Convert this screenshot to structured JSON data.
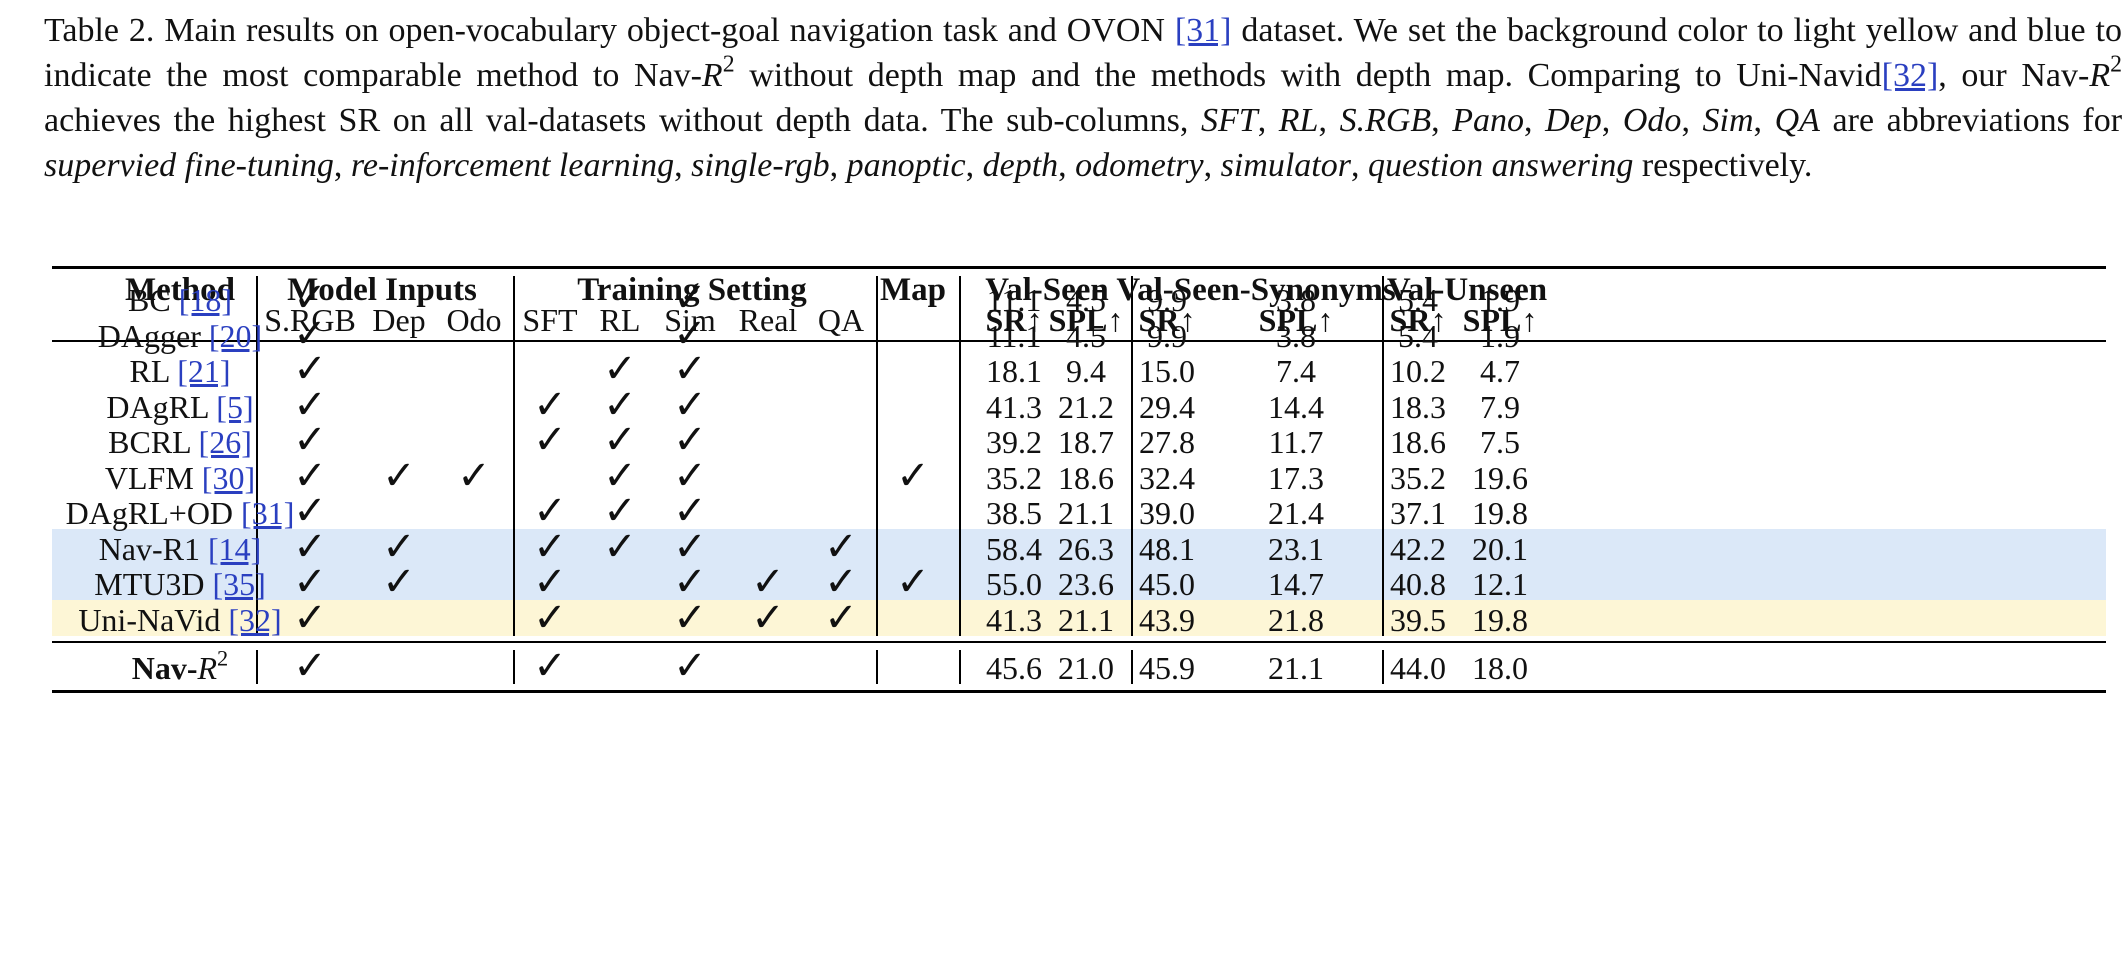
{
  "caption": {
    "label": "Table 2.",
    "s1a": "Main results on open-vocabulary object-goal navigation task and OVON",
    "s1ref": "[31]",
    "s1b": "dataset. We set the background color to light yellow and blue to indicate the most comparable method to Nav-",
    "s2a": "without depth map and the methods with depth map. Comparing to Uni-Navid",
    "s2ref": "[32]",
    "s2b": ", our Nav-",
    "s2c": "achieves the highest SR on all val-datasets without depth data. The sub-columns,",
    "abbr": [
      "SFT",
      "RL",
      "S.RGB",
      "Pano",
      "Dep",
      "Odo",
      "Sim",
      "QA"
    ],
    "mid": "are abbreviations for",
    "full": [
      "supervied fine-tuning",
      "re-inforcement learning",
      "single-rgb",
      "panoptic",
      "depth",
      "odometry",
      "simulator",
      "question answering"
    ],
    "end": "respectively.",
    "math_base": "R",
    "math_sup": "2"
  },
  "colors": {
    "blue_band": "#dbe8f8",
    "yellow_band": "#fdf6d6",
    "link": "#2a3fc0"
  },
  "table": {
    "group_headers": [
      "Method",
      "Model Inputs",
      "Training Setting",
      "Map",
      "Val-Seen",
      "Val-Seen-Synonyms",
      "Val-Unseen"
    ],
    "sub_headers": [
      "S.RGB",
      "Dep",
      "Odo",
      "SFT",
      "RL",
      "Sim",
      "Real",
      "QA"
    ],
    "metric_headers": [
      "SR↑",
      "SPL↑",
      "SR↑",
      "SPL↑",
      "SR↑",
      "SPL↑"
    ],
    "check_mark": "✓",
    "rows": [
      {
        "name": "BC",
        "ref": "[18]",
        "checks": [
          1,
          0,
          0,
          0,
          0,
          1,
          0,
          0,
          0
        ],
        "vals": [
          "11.1",
          "4.5",
          "9.9",
          "3.8",
          "5.4",
          "1.9"
        ],
        "band": ""
      },
      {
        "name": "DAgger",
        "ref": "[20]",
        "checks": [
          1,
          0,
          0,
          0,
          0,
          1,
          0,
          0,
          0
        ],
        "vals": [
          "11.1",
          "4.5",
          "9.9",
          "3.8",
          "5.4",
          "1.9"
        ],
        "band": ""
      },
      {
        "name": "RL",
        "ref": "[21]",
        "checks": [
          1,
          0,
          0,
          0,
          1,
          1,
          0,
          0,
          0
        ],
        "vals": [
          "18.1",
          "9.4",
          "15.0",
          "7.4",
          "10.2",
          "4.7"
        ],
        "band": ""
      },
      {
        "name": "DAgRL",
        "ref": "[5]",
        "checks": [
          1,
          0,
          0,
          1,
          1,
          1,
          0,
          0,
          0
        ],
        "vals": [
          "41.3",
          "21.2",
          "29.4",
          "14.4",
          "18.3",
          "7.9"
        ],
        "band": ""
      },
      {
        "name": "BCRL",
        "ref": "[26]",
        "checks": [
          1,
          0,
          0,
          1,
          1,
          1,
          0,
          0,
          0
        ],
        "vals": [
          "39.2",
          "18.7",
          "27.8",
          "11.7",
          "18.6",
          "7.5"
        ],
        "band": ""
      },
      {
        "name": "VLFM",
        "ref": "[30]",
        "checks": [
          1,
          1,
          1,
          0,
          1,
          1,
          0,
          0,
          1
        ],
        "vals": [
          "35.2",
          "18.6",
          "32.4",
          "17.3",
          "35.2",
          "19.6"
        ],
        "band": ""
      },
      {
        "name": "DAgRL+OD",
        "ref": "[31]",
        "checks": [
          1,
          0,
          0,
          1,
          1,
          1,
          0,
          0,
          0
        ],
        "vals": [
          "38.5",
          "21.1",
          "39.0",
          "21.4",
          "37.1",
          "19.8"
        ],
        "band": ""
      },
      {
        "name": "Nav-R1",
        "ref": "[14]",
        "checks": [
          1,
          1,
          0,
          1,
          1,
          1,
          0,
          1,
          0
        ],
        "vals": [
          "58.4",
          "26.3",
          "48.1",
          "23.1",
          "42.2",
          "20.1"
        ],
        "band": "blue"
      },
      {
        "name": "MTU3D",
        "ref": "[35]",
        "checks": [
          1,
          1,
          0,
          1,
          0,
          1,
          1,
          1,
          1
        ],
        "vals": [
          "55.0",
          "23.6",
          "45.0",
          "14.7",
          "40.8",
          "12.1"
        ],
        "band": "blue"
      },
      {
        "name": "Uni-NaVid",
        "ref": "[32]",
        "checks": [
          1,
          0,
          0,
          1,
          0,
          1,
          1,
          1,
          0
        ],
        "vals": [
          "41.3",
          "21.1",
          "43.9",
          "21.8",
          "39.5",
          "19.8"
        ],
        "band": "yellow"
      }
    ],
    "final_row": {
      "name": "Nav-",
      "checks": [
        1,
        0,
        0,
        1,
        0,
        1,
        0,
        0,
        0
      ],
      "vals": [
        "45.6",
        "21.0",
        "45.9",
        "21.1",
        "44.0",
        "18.0"
      ]
    }
  }
}
